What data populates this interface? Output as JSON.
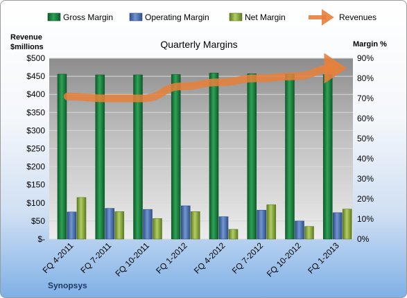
{
  "chart_data": {
    "type": "bar",
    "title": "Quarterly Margins",
    "categories": [
      "FQ 4-2011",
      "FQ 7-2011",
      "FQ 10-2011",
      "FQ 1-2012",
      "FQ 4-2012",
      "FQ 7-2012",
      "FQ 10-2012",
      "FQ 1-2013"
    ],
    "left_axis": {
      "label_line1": "Revenue",
      "label_line2": "$millions",
      "ylim": [
        0,
        500
      ],
      "ticks": [
        "$-",
        "$50",
        "$100",
        "$150",
        "$200",
        "$250",
        "$300",
        "$350",
        "$400",
        "$450",
        "$500"
      ]
    },
    "right_axis": {
      "label": "Margin %",
      "ylim": [
        0,
        90
      ],
      "ticks": [
        "0%",
        "10%",
        "20%",
        "30%",
        "40%",
        "50%",
        "60%",
        "70%",
        "80%",
        "90%"
      ]
    },
    "series": [
      {
        "name": "Gross Margin",
        "axis": "left",
        "color": "#1a7a3c",
        "values": [
          456,
          454,
          454,
          455,
          459,
          457,
          456,
          455
        ]
      },
      {
        "name": "Operating Margin",
        "axis": "left",
        "color": "#4a6fae",
        "values": [
          75,
          85,
          82,
          92,
          62,
          80,
          50,
          73
        ]
      },
      {
        "name": "Net Margin",
        "axis": "left",
        "color": "#8aad3c",
        "values": [
          115,
          76,
          57,
          76,
          27,
          95,
          35,
          83
        ]
      },
      {
        "name": "Revenues",
        "axis": "right",
        "type": "line",
        "color": "#e8803a",
        "values": [
          71,
          70,
          70,
          76,
          78,
          80,
          81,
          85
        ]
      }
    ],
    "grid": true,
    "legend_position": "top",
    "company": "Synopsys"
  }
}
